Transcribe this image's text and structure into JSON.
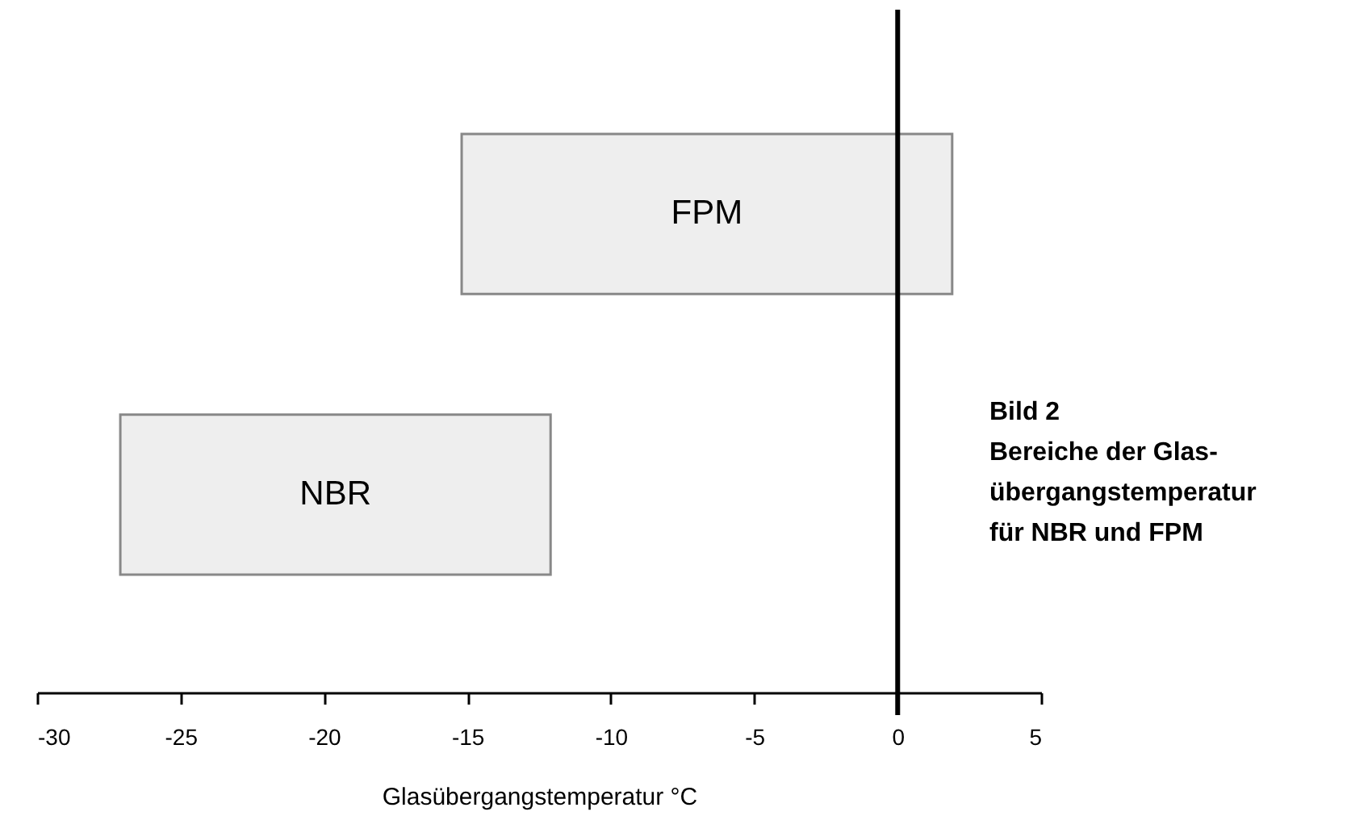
{
  "chart_data": {
    "type": "bar",
    "orientation": "horizontal",
    "title": "Bild  2",
    "subtitle": "Bereiche der Glas-\nübergangstemperatur\nfür NBR und FPM",
    "xlabel": "Glasübergangstemperatur    °C",
    "categories": [
      "FPM",
      "NBR"
    ],
    "base": [
      -15.2,
      -27.1
    ],
    "values": [
      17.1,
      15.0
    ],
    "colors": [
      "#eeeeee",
      "#eeeeee"
    ],
    "xlim": [
      -30,
      5
    ],
    "xticks": [
      -30,
      -25,
      -20,
      -15,
      -10,
      -5,
      0,
      5
    ],
    "ref_lines": [
      {
        "axis": "x",
        "value": 0,
        "color": "#000000"
      }
    ],
    "grid": false
  }
}
